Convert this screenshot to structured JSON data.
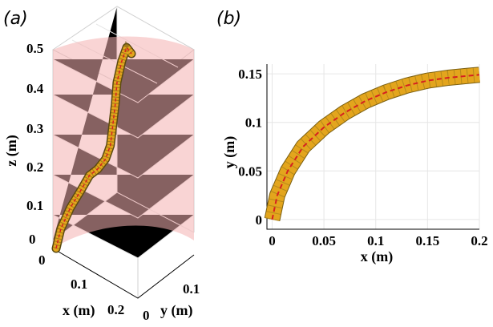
{
  "chart_data": [
    {
      "panel": "(a)",
      "type": "line",
      "projection": "3d",
      "xlabel": "x (m)",
      "ylabel": "y (m)",
      "zlabel": "z (m)",
      "xticks": [
        "0",
        "0.1",
        "0.2"
      ],
      "yticks": [
        "0",
        "0.1"
      ],
      "zticks": [
        "0",
        "0.1",
        "0.2",
        "0.3",
        "0.4",
        "0.5"
      ],
      "xlim": [
        0,
        0.2
      ],
      "ylim": [
        0,
        0.15
      ],
      "zlim": [
        0,
        0.5
      ],
      "surface_color": "#f4b0b0",
      "rod_color": "#e3a51d",
      "centerline_color": "#d62020",
      "series": [
        {
          "x": [
            0.0,
            0.02,
            0.05,
            0.08,
            0.1,
            0.12,
            0.14,
            0.15,
            0.155,
            0.16,
            0.16,
            0.17,
            0.18,
            0.19
          ],
          "y": [
            0.0,
            0.005,
            0.02,
            0.04,
            0.055,
            0.07,
            0.085,
            0.095,
            0.1,
            0.105,
            0.11,
            0.12,
            0.13,
            0.14
          ],
          "z": [
            0.0,
            0.05,
            0.1,
            0.14,
            0.17,
            0.18,
            0.2,
            0.23,
            0.28,
            0.33,
            0.38,
            0.43,
            0.46,
            0.44
          ]
        }
      ]
    },
    {
      "panel": "(b)",
      "type": "line",
      "xlabel": "x (m)",
      "ylabel": "y (m)",
      "xticks": [
        "0",
        "0.05",
        "0.1",
        "0.15",
        "0.2"
      ],
      "yticks": [
        "0",
        "0.05",
        "0.1",
        "0.15"
      ],
      "xlim": [
        -0.005,
        0.2
      ],
      "ylim": [
        -0.01,
        0.16
      ],
      "grid": true,
      "rod_color": "#e3a51d",
      "centerline_color": "#d62020",
      "series": [
        {
          "x": [
            0.0,
            0.005,
            0.015,
            0.03,
            0.05,
            0.07,
            0.09,
            0.11,
            0.13,
            0.15,
            0.17,
            0.19,
            0.2
          ],
          "y": [
            0.0,
            0.025,
            0.05,
            0.075,
            0.095,
            0.11,
            0.122,
            0.131,
            0.138,
            0.143,
            0.146,
            0.148,
            0.149
          ]
        }
      ]
    }
  ]
}
